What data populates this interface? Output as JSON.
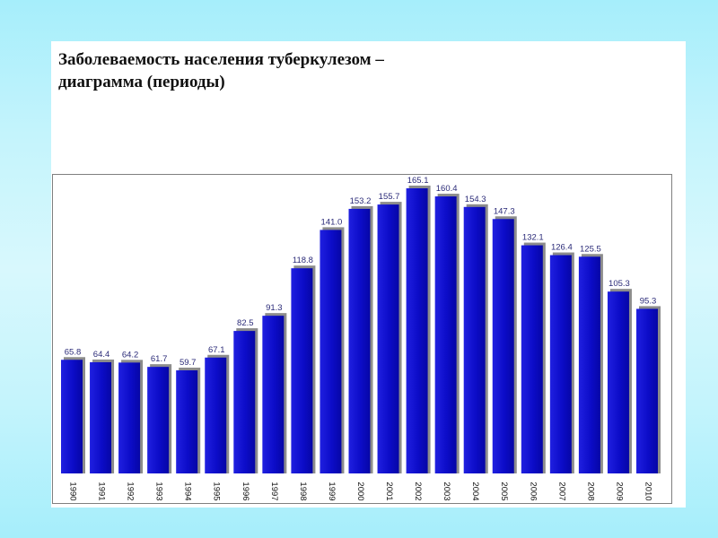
{
  "title_lines": [
    "Заболеваемость населения туберкулезом –",
    "диаграмма (периоды)"
  ],
  "colors": {
    "bar": "#0a0acc",
    "bar_light": "#2d2df0",
    "shadow": "#8c8c8c",
    "label": "#2a2a78"
  },
  "chart_data": {
    "type": "bar",
    "title": "Заболеваемость населения туберкулезом – диаграмма (периоды)",
    "categories": [
      "1990",
      "1991",
      "1992",
      "1993",
      "1994",
      "1995",
      "1996",
      "1997",
      "1998",
      "1999",
      "2000",
      "2001",
      "2002",
      "2003",
      "2004",
      "2005",
      "2006",
      "2007",
      "2008",
      "2009",
      "2010"
    ],
    "values": [
      65.8,
      64.4,
      64.2,
      61.7,
      59.7,
      67.1,
      82.5,
      91.3,
      118.8,
      141.0,
      153.2,
      155.7,
      165.1,
      160.4,
      154.3,
      147.3,
      132.1,
      126.4,
      125.5,
      105.3,
      95.3
    ],
    "value_labels": [
      "65.8",
      "64.4",
      "64.2",
      "61.7",
      "59.7",
      "67.1",
      "82.5",
      "91.3",
      "118.8",
      "141.0",
      "153.2",
      "155.7",
      "165.1",
      "160.4",
      "154.3",
      "147.3",
      "132.1",
      "126.4",
      "125.5",
      "105.3",
      "95.3"
    ],
    "xlabel": "",
    "ylabel": "",
    "ylim": [
      0,
      165.1
    ],
    "grid": false,
    "legend": "none"
  }
}
